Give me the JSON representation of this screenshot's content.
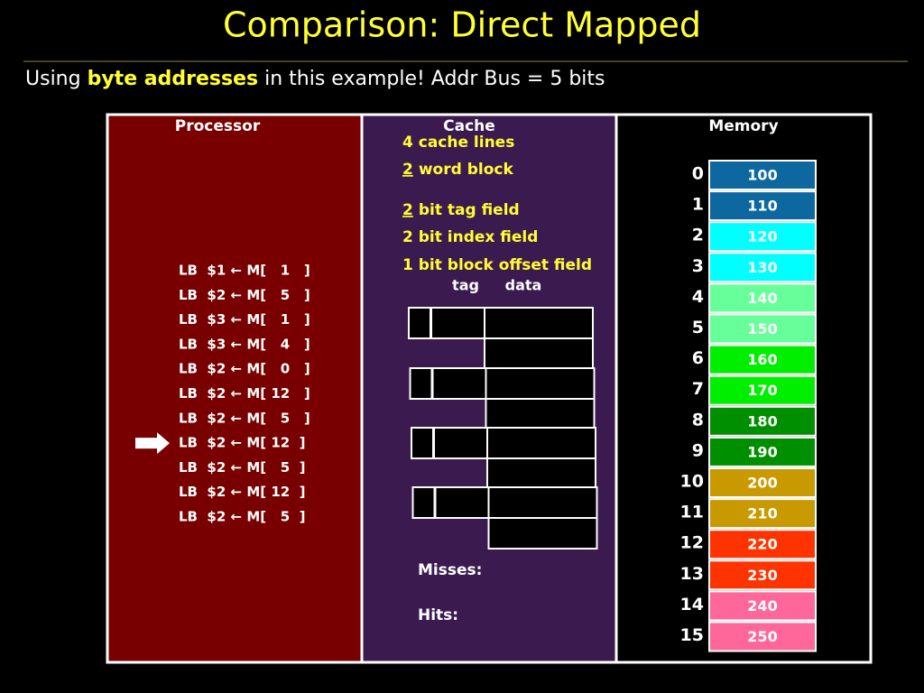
{
  "title": "Comparison: Direct Mapped",
  "subtitle": {
    "before": "Using",
    "highlight": "byte addresses",
    "after": "in this example! Addr Bus = 5 bits"
  },
  "panels": {
    "processor": "Processor",
    "cache": "Cache",
    "memory": "Memory"
  },
  "cache_notes": [
    {
      "text": "4 cache lines"
    },
    {
      "underline": "2",
      "text": "word block"
    },
    {
      "underline": "2",
      "text": "bit tag field"
    },
    {
      "text": "2 bit index field"
    },
    {
      "text": "1 bit block offset field"
    }
  ],
  "cache_columns": {
    "tag": "tag",
    "data": "data"
  },
  "instructions": [
    "LB  $1 ← M[   1   ]",
    "LB  $2 ← M[   5   ]",
    "LB  $3 ← M[   1   ]",
    "LB  $3 ← M[   4   ]",
    "LB  $2 ← M[   0   ]",
    "LB  $2 ← M[ 12   ]",
    "LB  $2 ← M[   5   ]",
    "LB  $2 ← M[ 12  ]",
    "LB  $2 ← M[   5  ]",
    "LB  $2 ← M[ 12  ]",
    "LB  $2 ← M[   5  ]"
  ],
  "current_instruction": 7,
  "memory": {
    "addresses": [
      0,
      1,
      2,
      3,
      4,
      5,
      6,
      7,
      8,
      9,
      10,
      11,
      12,
      13,
      14,
      15
    ],
    "values": [
      100,
      110,
      120,
      130,
      140,
      150,
      160,
      170,
      180,
      190,
      200,
      210,
      220,
      230,
      240,
      250
    ],
    "colors": [
      "#0d68a0",
      "#0d68a0",
      "#00ffff",
      "#00ffff",
      "#66ff99",
      "#66ff99",
      "#00ee00",
      "#00ee00",
      "#008f00",
      "#008f00",
      "#c99a00",
      "#c99a00",
      "#ff3300",
      "#ff3300",
      "#ff6699",
      "#ff6699"
    ]
  },
  "stats": {
    "misses": "Misses:",
    "hits": "Hits:"
  }
}
